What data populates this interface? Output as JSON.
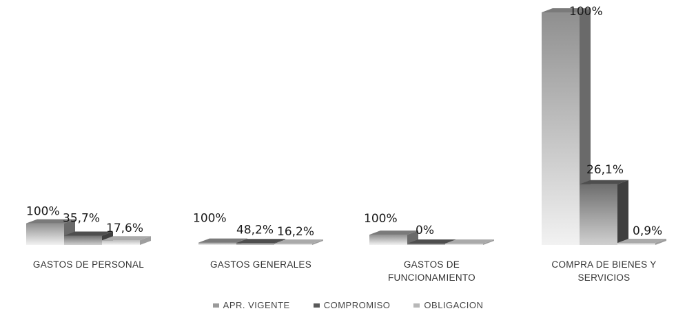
{
  "chart_data": {
    "type": "bar",
    "categories": [
      "GASTOS DE PERSONAL",
      "GASTOS GENERALES",
      "GASTOS DE FUNCIONAMIENTO",
      "COMPRA DE BIENES Y SERVICIOS"
    ],
    "category_lines": [
      [
        "GASTOS DE PERSONAL"
      ],
      [
        "GASTOS GENERALES"
      ],
      [
        "GASTOS DE",
        "FUNCIONAMIENTO"
      ],
      [
        "COMPRA DE BIENES Y",
        "SERVICIOS"
      ]
    ],
    "series": [
      {
        "name": "APR. VIGENTE",
        "color": "#9a9a9a",
        "values": [
          null,
          null,
          null,
          100
        ],
        "labels": [
          "100%",
          "100%",
          "100%",
          "100%"
        ]
      },
      {
        "name": "COMPROMISO",
        "color": "#5a5a5a",
        "values": [
          null,
          null,
          null,
          26.1
        ],
        "labels": [
          "35,7%",
          "48,2%",
          "0%",
          "26,1%"
        ]
      },
      {
        "name": "OBLIGACION",
        "color": "#b8b8b8",
        "values": [
          null,
          null,
          null,
          0.9
        ],
        "labels": [
          "17,6%",
          "16,2%",
          "",
          "0,9%"
        ]
      }
    ],
    "small_values": [
      [
        9.3,
        4.0,
        2.0
      ],
      [
        1.0,
        0.8,
        0.5
      ],
      [
        4.4,
        0.2,
        0.0
      ]
    ],
    "ylim": [
      0,
      100
    ],
    "legend_position": "bottom",
    "grid": false,
    "style": "3d-column"
  }
}
